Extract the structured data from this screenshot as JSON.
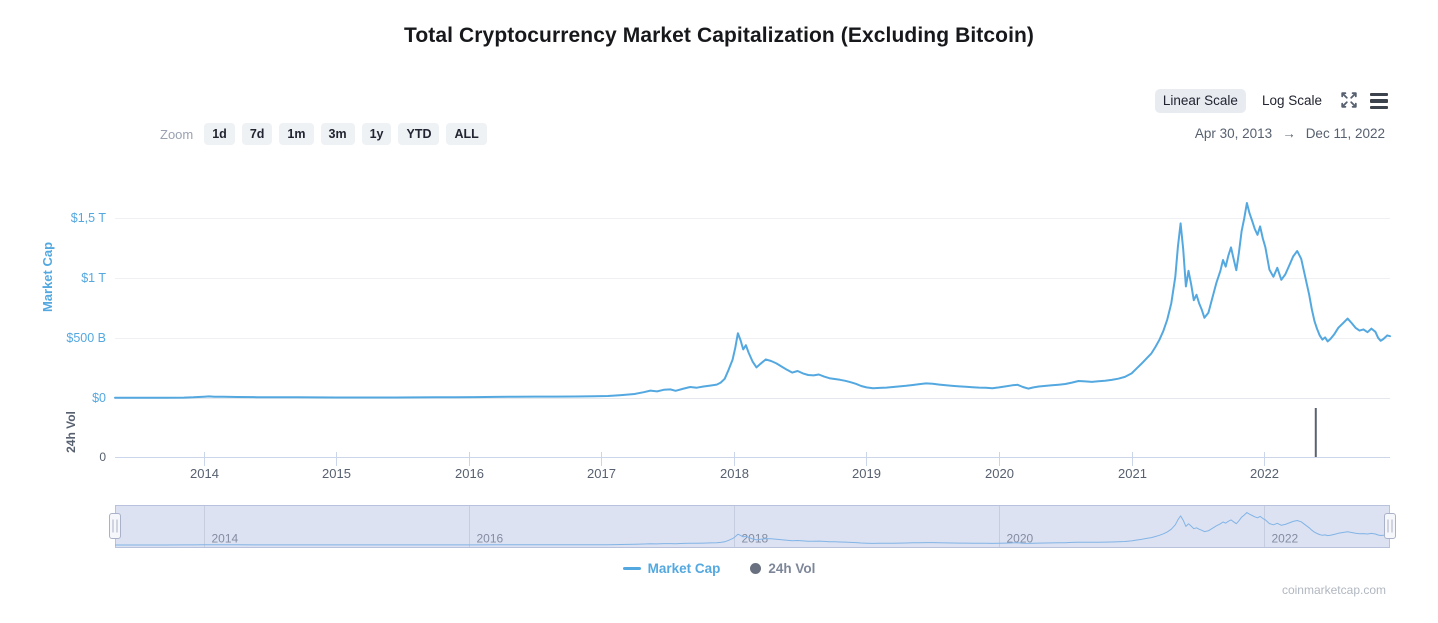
{
  "title": "Total Cryptocurrency Market Capitalization (Excluding Bitcoin)",
  "toolbar": {
    "scale_buttons": [
      {
        "label": "Linear Scale",
        "active": true
      },
      {
        "label": "Log Scale",
        "active": false
      }
    ],
    "fullscreen_icon": "expand-arrows",
    "menu_icon": "hamburger",
    "zoom_label": "Zoom",
    "zoom_buttons": [
      "1d",
      "7d",
      "1m",
      "3m",
      "1y",
      "YTD",
      "ALL"
    ],
    "date_range": {
      "start": "Apr 30, 2013",
      "arrow": "→",
      "end": "Dec 11, 2022"
    }
  },
  "watermark": "coinmarketcap.com",
  "chart_data": {
    "type": "line",
    "title": "Total Cryptocurrency Market Capitalization (Excluding Bitcoin)",
    "x": {
      "range_years": [
        2013.33,
        2022.95
      ],
      "start_label": "Apr 30, 2013",
      "end_label": "Dec 11, 2022",
      "year_ticks": [
        2014,
        2015,
        2016,
        2017,
        2018,
        2019,
        2020,
        2021,
        2022
      ]
    },
    "y_market_cap": {
      "axis_label": "Market Cap",
      "unit": "billions USD",
      "ticks": [
        {
          "value": 0,
          "label": "$0"
        },
        {
          "value": 500,
          "label": "$500 B"
        },
        {
          "value": 1000,
          "label": "$1 T"
        },
        {
          "value": 1500,
          "label": "$1,5 T"
        }
      ],
      "range": [
        0,
        2000
      ]
    },
    "y_volume": {
      "axis_label": "24h Vol",
      "ticks": [
        {
          "value": 0,
          "label": "0"
        }
      ]
    },
    "grid": "horizontal-light",
    "legend_position": "bottom-center",
    "legend": [
      {
        "label": "Market Cap",
        "marker": "line",
        "color": "#54a8e0"
      },
      {
        "label": "24h Vol",
        "marker": "circle",
        "color": "#697180"
      }
    ],
    "series": [
      {
        "name": "Market Cap",
        "color": "#54a8e0",
        "points": [
          [
            2013.33,
            1.5
          ],
          [
            2013.5,
            2
          ],
          [
            2013.7,
            2.5
          ],
          [
            2013.85,
            3.5
          ],
          [
            2013.92,
            6
          ],
          [
            2014.0,
            10.5
          ],
          [
            2014.04,
            13
          ],
          [
            2014.08,
            11
          ],
          [
            2014.15,
            10
          ],
          [
            2014.25,
            8.5
          ],
          [
            2014.4,
            7
          ],
          [
            2014.55,
            6
          ],
          [
            2014.7,
            5.5
          ],
          [
            2014.85,
            5
          ],
          [
            2015.0,
            4.5
          ],
          [
            2015.15,
            4
          ],
          [
            2015.3,
            4
          ],
          [
            2015.45,
            4.5
          ],
          [
            2015.6,
            5
          ],
          [
            2015.75,
            5.5
          ],
          [
            2015.9,
            6.5
          ],
          [
            2016.05,
            7.5
          ],
          [
            2016.2,
            9
          ],
          [
            2016.35,
            10.5
          ],
          [
            2016.5,
            11.5
          ],
          [
            2016.65,
            12
          ],
          [
            2016.8,
            12.5
          ],
          [
            2016.95,
            14
          ],
          [
            2017.05,
            17
          ],
          [
            2017.15,
            24
          ],
          [
            2017.25,
            33
          ],
          [
            2017.32,
            48
          ],
          [
            2017.37,
            62
          ],
          [
            2017.42,
            55
          ],
          [
            2017.47,
            68
          ],
          [
            2017.52,
            72
          ],
          [
            2017.56,
            60
          ],
          [
            2017.62,
            78
          ],
          [
            2017.67,
            92
          ],
          [
            2017.72,
            86
          ],
          [
            2017.77,
            96
          ],
          [
            2017.82,
            103
          ],
          [
            2017.87,
            112
          ],
          [
            2017.9,
            128
          ],
          [
            2017.93,
            160
          ],
          [
            2017.96,
            235
          ],
          [
            2017.99,
            320
          ],
          [
            2018.01,
            420
          ],
          [
            2018.03,
            540
          ],
          [
            2018.05,
            480
          ],
          [
            2018.07,
            405
          ],
          [
            2018.09,
            440
          ],
          [
            2018.11,
            380
          ],
          [
            2018.14,
            305
          ],
          [
            2018.17,
            255
          ],
          [
            2018.2,
            285
          ],
          [
            2018.24,
            322
          ],
          [
            2018.28,
            308
          ],
          [
            2018.32,
            288
          ],
          [
            2018.36,
            262
          ],
          [
            2018.4,
            235
          ],
          [
            2018.44,
            212
          ],
          [
            2018.48,
            225
          ],
          [
            2018.52,
            205
          ],
          [
            2018.56,
            192
          ],
          [
            2018.6,
            188
          ],
          [
            2018.64,
            196
          ],
          [
            2018.68,
            178
          ],
          [
            2018.72,
            165
          ],
          [
            2018.76,
            158
          ],
          [
            2018.8,
            152
          ],
          [
            2018.84,
            143
          ],
          [
            2018.88,
            132
          ],
          [
            2018.92,
            118
          ],
          [
            2018.96,
            100
          ],
          [
            2019.0,
            88
          ],
          [
            2019.05,
            82
          ],
          [
            2019.1,
            84
          ],
          [
            2019.15,
            87
          ],
          [
            2019.2,
            92
          ],
          [
            2019.25,
            97
          ],
          [
            2019.3,
            102
          ],
          [
            2019.35,
            108
          ],
          [
            2019.4,
            116
          ],
          [
            2019.45,
            122
          ],
          [
            2019.5,
            118
          ],
          [
            2019.55,
            112
          ],
          [
            2019.6,
            106
          ],
          [
            2019.65,
            101
          ],
          [
            2019.7,
            97
          ],
          [
            2019.75,
            93
          ],
          [
            2019.8,
            90
          ],
          [
            2019.85,
            87
          ],
          [
            2019.9,
            85
          ],
          [
            2019.95,
            82
          ],
          [
            2020.0,
            88
          ],
          [
            2020.05,
            97
          ],
          [
            2020.1,
            106
          ],
          [
            2020.14,
            110
          ],
          [
            2020.18,
            92
          ],
          [
            2020.22,
            78
          ],
          [
            2020.26,
            88
          ],
          [
            2020.3,
            96
          ],
          [
            2020.35,
            101
          ],
          [
            2020.4,
            106
          ],
          [
            2020.45,
            111
          ],
          [
            2020.5,
            117
          ],
          [
            2020.55,
            128
          ],
          [
            2020.6,
            142
          ],
          [
            2020.65,
            138
          ],
          [
            2020.7,
            134
          ],
          [
            2020.75,
            139
          ],
          [
            2020.8,
            144
          ],
          [
            2020.85,
            151
          ],
          [
            2020.9,
            161
          ],
          [
            2020.95,
            176
          ],
          [
            2021.0,
            205
          ],
          [
            2021.04,
            248
          ],
          [
            2021.08,
            292
          ],
          [
            2021.12,
            338
          ],
          [
            2021.15,
            372
          ],
          [
            2021.18,
            425
          ],
          [
            2021.21,
            485
          ],
          [
            2021.24,
            560
          ],
          [
            2021.27,
            655
          ],
          [
            2021.3,
            790
          ],
          [
            2021.33,
            1010
          ],
          [
            2021.35,
            1260
          ],
          [
            2021.37,
            1455
          ],
          [
            2021.39,
            1240
          ],
          [
            2021.41,
            930
          ],
          [
            2021.43,
            1060
          ],
          [
            2021.45,
            945
          ],
          [
            2021.47,
            815
          ],
          [
            2021.49,
            860
          ],
          [
            2021.51,
            790
          ],
          [
            2021.53,
            735
          ],
          [
            2021.55,
            668
          ],
          [
            2021.58,
            710
          ],
          [
            2021.61,
            835
          ],
          [
            2021.64,
            960
          ],
          [
            2021.67,
            1060
          ],
          [
            2021.69,
            1150
          ],
          [
            2021.71,
            1095
          ],
          [
            2021.73,
            1185
          ],
          [
            2021.75,
            1255
          ],
          [
            2021.77,
            1160
          ],
          [
            2021.79,
            1065
          ],
          [
            2021.81,
            1210
          ],
          [
            2021.83,
            1390
          ],
          [
            2021.85,
            1495
          ],
          [
            2021.87,
            1625
          ],
          [
            2021.89,
            1540
          ],
          [
            2021.91,
            1475
          ],
          [
            2021.93,
            1408
          ],
          [
            2021.95,
            1360
          ],
          [
            2021.97,
            1430
          ],
          [
            2021.99,
            1330
          ],
          [
            2022.01,
            1255
          ],
          [
            2022.04,
            1070
          ],
          [
            2022.07,
            1010
          ],
          [
            2022.1,
            1085
          ],
          [
            2022.13,
            985
          ],
          [
            2022.16,
            1030
          ],
          [
            2022.19,
            1105
          ],
          [
            2022.22,
            1180
          ],
          [
            2022.25,
            1225
          ],
          [
            2022.28,
            1160
          ],
          [
            2022.31,
            1010
          ],
          [
            2022.34,
            860
          ],
          [
            2022.36,
            740
          ],
          [
            2022.38,
            640
          ],
          [
            2022.4,
            575
          ],
          [
            2022.42,
            520
          ],
          [
            2022.44,
            487
          ],
          [
            2022.46,
            505
          ],
          [
            2022.48,
            472
          ],
          [
            2022.5,
            492
          ],
          [
            2022.53,
            532
          ],
          [
            2022.56,
            585
          ],
          [
            2022.6,
            628
          ],
          [
            2022.63,
            662
          ],
          [
            2022.66,
            625
          ],
          [
            2022.69,
            585
          ],
          [
            2022.72,
            562
          ],
          [
            2022.75,
            572
          ],
          [
            2022.78,
            548
          ],
          [
            2022.81,
            578
          ],
          [
            2022.84,
            552
          ],
          [
            2022.86,
            502
          ],
          [
            2022.88,
            477
          ],
          [
            2022.9,
            492
          ],
          [
            2022.93,
            522
          ],
          [
            2022.95,
            515
          ]
        ]
      },
      {
        "name": "24h Vol",
        "color": "#5a6170",
        "note": "single visible volume spike bar; all other bars at ~0",
        "bars": [
          [
            2022.39,
            1.0
          ]
        ]
      }
    ],
    "navigator": {
      "year_ticks": [
        2014,
        2016,
        2018,
        2020,
        2022
      ],
      "background": "#dce2f2",
      "border": "#b9c2dc"
    }
  }
}
